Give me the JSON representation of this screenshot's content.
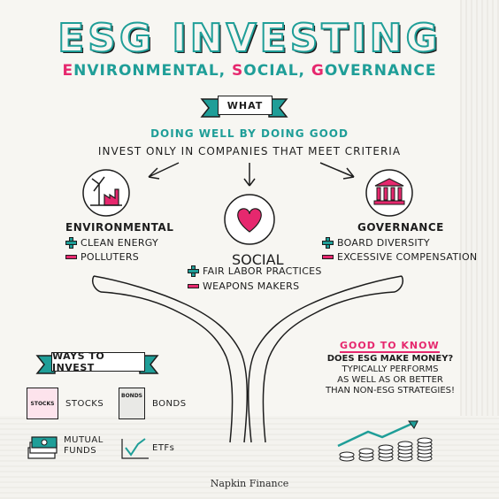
{
  "title": "ESG INVESTING",
  "subtitle": {
    "e": "E",
    "environmental": "NVIRONMENTAL, ",
    "s": "S",
    "social": "OCIAL, ",
    "g": "G",
    "governance": "OVERNANCE"
  },
  "what_label": "WHAT",
  "headline": "DOING WELL BY DOING GOOD",
  "tagline": "INVEST ONLY IN COMPANIES THAT MEET CRITERIA",
  "categories": {
    "environmental": {
      "title": "ENVIRONMENTAL",
      "plus": "CLEAN ENERGY",
      "minus": "POLLUTERS",
      "icon": "factory-windmill-icon"
    },
    "social": {
      "title": "SOCIAL",
      "plus": "FAIR LABOR PRACTICES",
      "minus": "WEAPONS MAKERS",
      "icon": "heart-icon"
    },
    "governance": {
      "title": "GOVERNANCE",
      "plus": "BOARD DIVERSITY",
      "minus": "EXCESSIVE COMPENSATION",
      "icon": "courthouse-icon"
    }
  },
  "ways": {
    "label": "WAYS TO INVEST",
    "stocks": "STOCKS",
    "stocks_card": "STOCKS",
    "bonds": "BONDS",
    "bonds_card": "BONDS",
    "mutual_funds_1": "MUTUAL",
    "mutual_funds_2": "FUNDS",
    "etfs": "ETFs"
  },
  "good_to_know": {
    "title": "GOOD TO KNOW",
    "question": "DOES ESG MAKE MONEY?",
    "line1": "TYPICALLY PERFORMS",
    "line2": "AS WELL AS OR BETTER",
    "line3": "THAN NON-ESG STRATEGIES!"
  },
  "brand": "Napkin Finance",
  "colors": {
    "teal": "#1f9e98",
    "pink": "#e6286e",
    "ink": "#1d1d1d"
  }
}
